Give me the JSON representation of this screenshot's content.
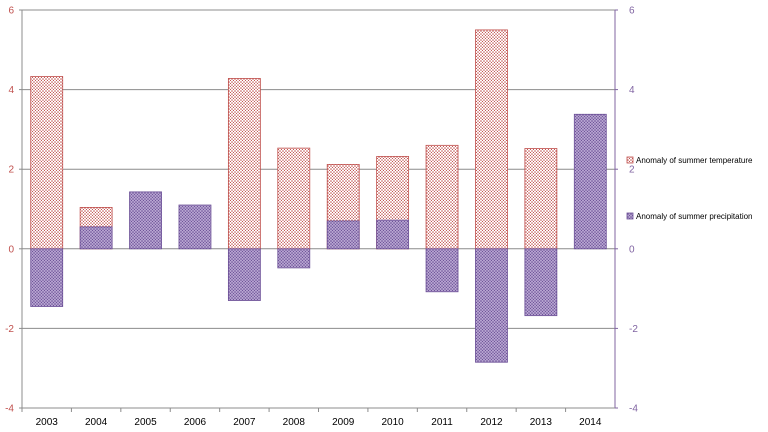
{
  "chart_data": {
    "type": "bar",
    "categories": [
      "2003",
      "2004",
      "2005",
      "2006",
      "2007",
      "2008",
      "2009",
      "2010",
      "2011",
      "2012",
      "2013",
      "2014"
    ],
    "series": [
      {
        "name": "Anomaly of summer temperature",
        "color": "#c0504d",
        "pattern": "dotted-fill",
        "axis": "left",
        "values": [
          4.33,
          1.04,
          0,
          0,
          4.28,
          2.53,
          2.12,
          2.32,
          2.6,
          5.5,
          2.52,
          0
        ]
      },
      {
        "name": "Anomaly of summer precipitation",
        "color": "#8064a2",
        "pattern": "dotted-fill",
        "axis": "right",
        "values": [
          -1.45,
          0.55,
          1.43,
          1.1,
          -1.3,
          -0.48,
          0.7,
          0.72,
          -1.08,
          -2.85,
          -1.68,
          3.38
        ]
      }
    ],
    "yaxis_left": {
      "min": -4,
      "max": 6,
      "ticks": [
        "-4",
        "-2",
        "0",
        "2",
        "4",
        "6"
      ],
      "color": "#c0504d"
    },
    "yaxis_right": {
      "min": -4,
      "max": 6,
      "ticks": [
        "-4",
        "-2",
        "0",
        "2",
        "4",
        "6"
      ],
      "color": "#8064a2"
    },
    "grid": true,
    "legend_placement": "right",
    "title": "",
    "xlabel": "",
    "ylabel": ""
  }
}
